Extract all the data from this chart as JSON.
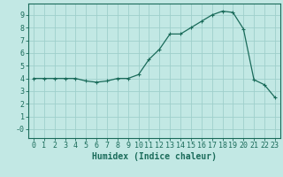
{
  "x": [
    0,
    1,
    2,
    3,
    4,
    5,
    6,
    7,
    8,
    9,
    10,
    11,
    12,
    13,
    14,
    15,
    16,
    17,
    18,
    19,
    20,
    21,
    22,
    23
  ],
  "y": [
    4.0,
    4.0,
    4.0,
    4.0,
    4.0,
    3.8,
    3.7,
    3.8,
    4.0,
    4.0,
    4.3,
    5.5,
    6.3,
    7.5,
    7.5,
    8.0,
    8.5,
    9.0,
    9.3,
    9.2,
    7.9,
    3.9,
    3.5,
    2.5
  ],
  "line_color": "#1a6b5a",
  "marker": "+",
  "marker_size": 3.5,
  "marker_lw": 0.8,
  "bg_color": "#c2e8e4",
  "grid_color": "#9fcfcb",
  "axis_color": "#1a6b5a",
  "tick_color": "#1a6b5a",
  "xlabel": "Humidex (Indice chaleur)",
  "xlim": [
    -0.5,
    23.5
  ],
  "ylim": [
    -0.7,
    9.9
  ],
  "yticks": [
    0,
    1,
    2,
    3,
    4,
    5,
    6,
    7,
    8,
    9
  ],
  "ytick_labels": [
    "-0",
    "1",
    "2",
    "3",
    "4",
    "5",
    "6",
    "7",
    "8",
    "9"
  ],
  "xticks": [
    0,
    1,
    2,
    3,
    4,
    5,
    6,
    7,
    8,
    9,
    10,
    11,
    12,
    13,
    14,
    15,
    16,
    17,
    18,
    19,
    20,
    21,
    22,
    23
  ],
  "font_size": 6.0,
  "xlabel_font_size": 7.0,
  "line_width": 0.9
}
